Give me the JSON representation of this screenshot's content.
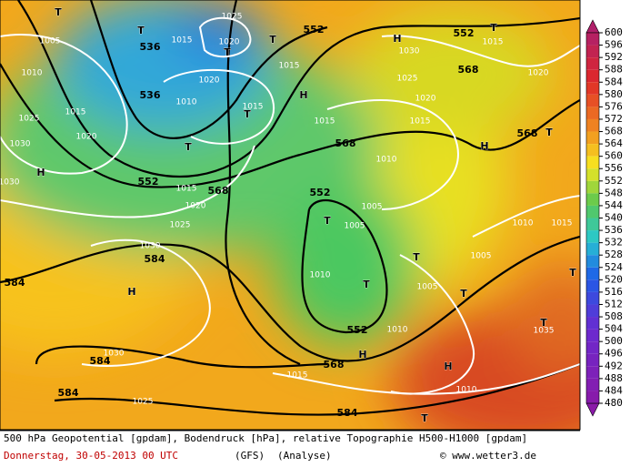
{
  "map": {
    "labels": [
      "536",
      "536",
      "552",
      "552",
      "568",
      "552",
      "568",
      "552",
      "568",
      "568",
      "584",
      "584",
      "584",
      "584",
      "552",
      "568",
      "584",
      "1005",
      "1015",
      "1025",
      "1020",
      "1015",
      "1020",
      "1010",
      "1015",
      "1010",
      "1015",
      "1025",
      "1020",
      "1030",
      "1030",
      "1015",
      "1020",
      "1025",
      "1030",
      "1030",
      "1025",
      "1030",
      "1025",
      "1020",
      "1015",
      "1015",
      "1010",
      "1005",
      "1005",
      "1010",
      "1005",
      "1010",
      "1015",
      "1010",
      "1005",
      "1010",
      "1015",
      "1020",
      "1015",
      "1035",
      "T",
      "T",
      "T",
      "T",
      "T",
      "H",
      "H",
      "H",
      "T",
      "H",
      "T",
      "H",
      "T",
      "T",
      "T",
      "T",
      "H",
      "H",
      "T",
      "T",
      "T",
      "T"
    ]
  },
  "legend": {
    "labels": [
      "600",
      "596",
      "592",
      "588",
      "584",
      "580",
      "576",
      "572",
      "568",
      "564",
      "560",
      "556",
      "552",
      "548",
      "544",
      "540",
      "536",
      "532",
      "528",
      "524",
      "520",
      "516",
      "512",
      "508",
      "504",
      "500",
      "496",
      "492",
      "488",
      "484",
      "480"
    ]
  },
  "footer": {
    "line1": "500 hPa Geopotential [gpdam], Bodendruck [hPa], relative Topographie H500-H1000 [gpdam]",
    "date": "Donnerstag, 30-05-2013  00 UTC",
    "model": "(GFS)",
    "analysis": "(Analyse)",
    "copyright": "© www.wetter3.de"
  }
}
